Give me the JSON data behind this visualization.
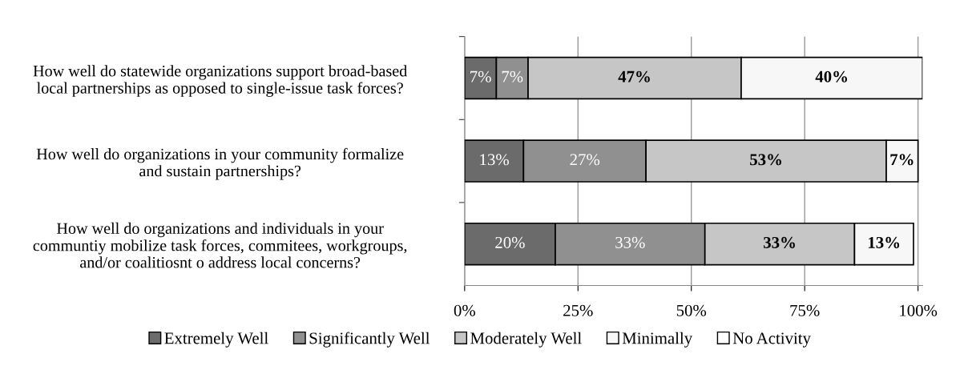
{
  "chart_data": {
    "type": "bar",
    "orientation": "horizontal",
    "stacked": true,
    "categories": [
      "How well do statewide organizations support broad-based\nlocal partnerships as opposed to single-issue task forces?",
      "How well do organizations in your community formalize\nand sustain partnerships?",
      "How well do organizations and individuals in your\ncommuntiy mobilize task forces, commitees, workgroups,\nand/or coalitiosnt o address local concerns?"
    ],
    "series": [
      {
        "name": "Extremely Well",
        "color": "#6b6b6b",
        "values": [
          7,
          13,
          20
        ],
        "value_labels": [
          "7%",
          "13%",
          "20%"
        ]
      },
      {
        "name": "Significantly Well",
        "color": "#909090",
        "values": [
          7,
          27,
          33
        ],
        "value_labels": [
          "7%",
          "27%",
          "33%"
        ]
      },
      {
        "name": "Moderately Well",
        "color": "#c6c6c6",
        "values": [
          47,
          53,
          33
        ],
        "value_labels": [
          "47%",
          "53%",
          "33%"
        ]
      },
      {
        "name": "Minimally",
        "color": "#f7f7f7",
        "values": [
          40,
          7,
          13
        ],
        "value_labels": [
          "40%",
          "7%",
          "13%"
        ]
      },
      {
        "name": "No Activity",
        "color": "#ffffff",
        "values": [
          null,
          null,
          null
        ],
        "value_labels": [
          null,
          null,
          null
        ]
      }
    ],
    "xlim": [
      0,
      101
    ],
    "xticks": [
      {
        "value": 0,
        "label": "0%"
      },
      {
        "value": 25,
        "label": "25%"
      },
      {
        "value": 50,
        "label": "50%"
      },
      {
        "value": 75,
        "label": "75%"
      },
      {
        "value": 100,
        "label": "100%"
      }
    ],
    "grid": "x",
    "legend": "bottom"
  }
}
